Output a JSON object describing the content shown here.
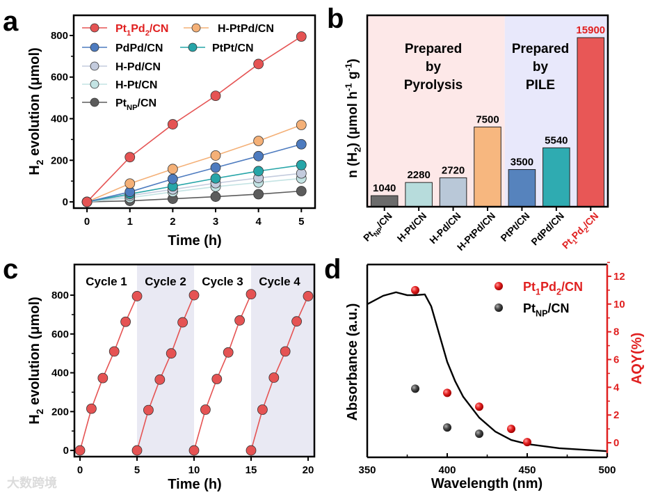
{
  "figure": {
    "panel_letters": [
      "a",
      "b",
      "c",
      "d"
    ],
    "watermark": "大数跨境"
  },
  "chart_data": [
    {
      "panel": "a",
      "type": "line",
      "xlabel": "Time (h)",
      "ylabel": [
        {
          "t": "H"
        },
        {
          "t": "2",
          "sub": true
        },
        {
          "t": " evolution (μmol)"
        }
      ],
      "xlim": [
        -0.31,
        5.32
      ],
      "ylim": [
        -30,
        897
      ],
      "xticks": [
        0,
        1,
        2,
        3,
        4,
        5
      ],
      "yticks": [
        0,
        200,
        400,
        600,
        800
      ],
      "x": [
        0,
        1,
        2,
        3,
        4,
        5
      ],
      "series": [
        {
          "name": "PtNP/CN",
          "color": "#5c5c5c",
          "values": [
            0,
            5,
            15,
            25,
            37,
            52
          ]
        },
        {
          "name": "H-Pt/CN",
          "color": "#c3e3e3",
          "values": [
            0,
            20,
            48,
            73,
            93,
            113
          ]
        },
        {
          "name": "H-Pd/CN",
          "color": "#c3cbdd",
          "values": [
            0,
            30,
            60,
            90,
            115,
            137
          ]
        },
        {
          "name": "PtPt/CN",
          "color": "#26a5a8",
          "values": [
            0,
            38,
            75,
            113,
            148,
            177
          ]
        },
        {
          "name": "PdPd/CN",
          "color": "#4d7bbf",
          "values": [
            0,
            48,
            110,
            165,
            220,
            277
          ]
        },
        {
          "name": "H-PtPd/CN",
          "color": "#f4b077",
          "values": [
            0,
            88,
            158,
            223,
            293,
            370
          ]
        },
        {
          "name": "Pt1Pd2/CN",
          "color": "#e55353",
          "values": [
            0,
            215,
            373,
            510,
            663,
            795
          ]
        }
      ],
      "legend": [
        "Pt1Pd2/CN",
        "H-PtPd/CN",
        "PdPd/CN",
        "PtPt/CN",
        "H-Pd/CN",
        "H-Pt/CN",
        "PtNP/CN"
      ],
      "legend_position": "top-left",
      "highlight_color": "#e02020"
    },
    {
      "panel": "b",
      "type": "bar",
      "ylabel": [
        {
          "t": "n (H"
        },
        {
          "t": "2",
          "sub": true
        },
        {
          "t": ") (μmol h"
        },
        {
          "t": "-1",
          "sup": true
        },
        {
          "t": " g"
        },
        {
          "t": "-1",
          "sup": true
        },
        {
          "t": ")"
        }
      ],
      "categories": [
        "PtNP/CN",
        "H-Pt/CN",
        "H-Pd/CN",
        "H-PtPd/CN",
        "PtPt/CN",
        "PdPd/CN",
        "Pt1Pd2/CN"
      ],
      "values": [
        1040,
        2280,
        2720,
        7500,
        3500,
        5540,
        15900
      ],
      "colors": [
        "#6b6b6b",
        "#b7dcdc",
        "#b9c8d8",
        "#f7b77f",
        "#5683bd",
        "#2fabb1",
        "#e85756"
      ],
      "ylim": [
        0,
        18000
      ],
      "groups": [
        {
          "label": [
            "Prepared",
            "by",
            "Pyrolysis"
          ],
          "categories": 4,
          "color": "#fde8e8"
        },
        {
          "label": [
            "Prepared",
            "by",
            "PILE"
          ],
          "categories": 3,
          "color": "#e8e8fb"
        }
      ],
      "highlight_color": "#e02020"
    },
    {
      "panel": "c",
      "type": "line",
      "xlabel": "Time (h)",
      "ylabel": [
        {
          "t": "H"
        },
        {
          "t": "2",
          "sub": true
        },
        {
          "t": " evolution (μmol)"
        }
      ],
      "xlim": [
        -0.49,
        20.55
      ],
      "ylim": [
        -32,
        958
      ],
      "xticks": [
        0,
        5,
        10,
        15,
        20
      ],
      "yticks": [
        0,
        200,
        400,
        600,
        800
      ],
      "series_color": "#e55353",
      "band_color": "#e9e9f3",
      "cycles": [
        {
          "label": "Cycle 1",
          "x": [
            0,
            1,
            2,
            3,
            4,
            5
          ],
          "values": [
            0,
            215,
            373,
            510,
            663,
            795
          ],
          "shaded": false
        },
        {
          "label": "Cycle 2",
          "x": [
            5,
            6,
            7,
            8,
            9,
            10
          ],
          "values": [
            0,
            208,
            365,
            500,
            660,
            800
          ],
          "shaded": true
        },
        {
          "label": "Cycle 3",
          "x": [
            10,
            11,
            12,
            13,
            14,
            15
          ],
          "values": [
            0,
            210,
            368,
            505,
            670,
            805
          ],
          "shaded": false
        },
        {
          "label": "Cycle 4",
          "x": [
            15,
            16,
            17,
            18,
            19,
            20
          ],
          "values": [
            0,
            210,
            375,
            510,
            665,
            795
          ],
          "shaded": true
        }
      ]
    },
    {
      "panel": "d",
      "type": "scatter",
      "xlabel": "Wavelength (nm)",
      "ylabel_left": "Absorbance (a.u.)",
      "ylabel_right": "AQY(%)",
      "xlim": [
        350,
        500
      ],
      "xticks": [
        350,
        400,
        450,
        500
      ],
      "ylim_left": [
        0,
        1
      ],
      "ylim_right": [
        -1.05,
        12.85
      ],
      "yticks_right": [
        0,
        2,
        4,
        6,
        8,
        10,
        12
      ],
      "right_axis_color": "#e02020",
      "absorbance": {
        "color": "#000000",
        "x": [
          350,
          360,
          368,
          375,
          380,
          386,
          390,
          395,
          400,
          405,
          410,
          420,
          430,
          440,
          450,
          470,
          500
        ],
        "y": [
          0.794,
          0.838,
          0.856,
          0.841,
          0.841,
          0.845,
          0.783,
          0.639,
          0.495,
          0.394,
          0.314,
          0.206,
          0.134,
          0.09,
          0.069,
          0.047,
          0.032
        ]
      },
      "series": [
        {
          "name": "Pt1Pd2/CN",
          "color": "#e02020",
          "x": [
            380,
            400,
            420,
            440,
            450
          ],
          "values": [
            11.0,
            3.6,
            2.6,
            1.0,
            0.05
          ]
        },
        {
          "name": "PtNP/CN",
          "color": "#404040",
          "x": [
            380,
            400,
            420
          ],
          "values": [
            3.9,
            1.1,
            0.65
          ]
        }
      ],
      "legend_position": "top-right"
    }
  ]
}
